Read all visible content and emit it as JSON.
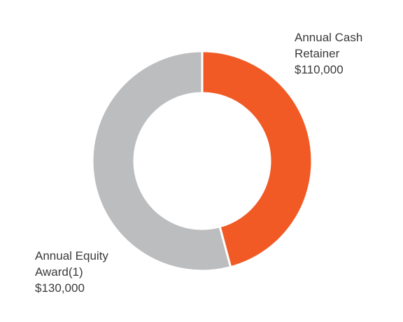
{
  "chart_data": {
    "type": "pie",
    "donut": true,
    "legend": "none",
    "slices": [
      {
        "label_lines": [
          "Annual Cash",
          "Retainer"
        ],
        "value_label": "$110,000",
        "value": 110000,
        "color": "#f15a24"
      },
      {
        "label_lines": [
          "Annual Equity",
          "Award(1)"
        ],
        "value_label": "$130,000",
        "value": 130000,
        "color": "#bcbdbf"
      }
    ]
  }
}
